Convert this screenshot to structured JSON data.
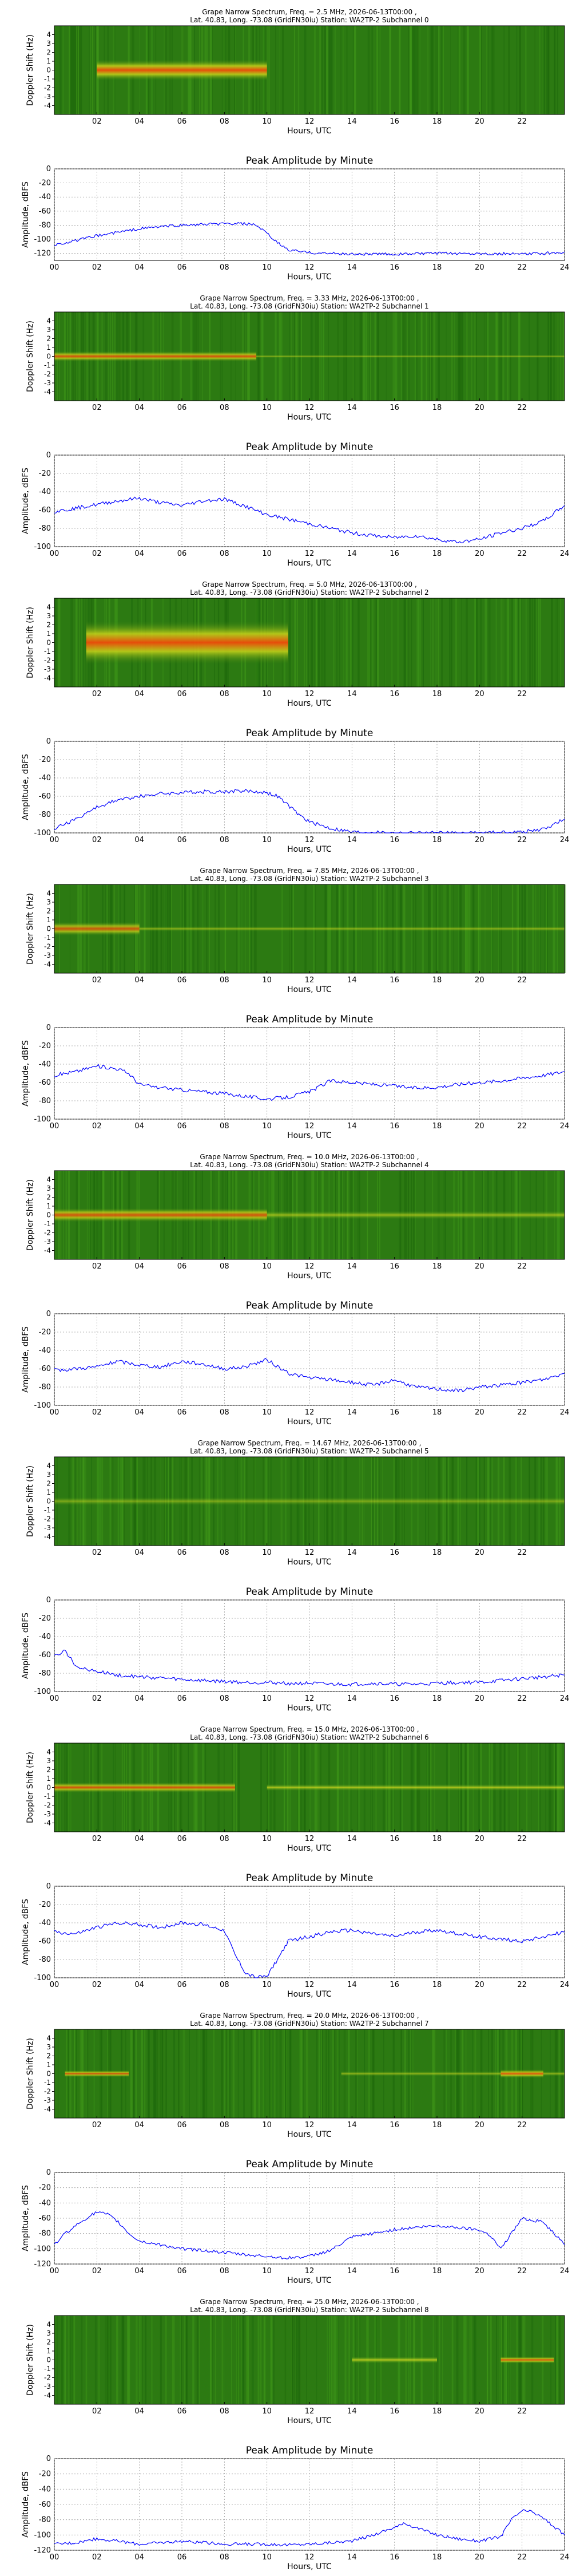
{
  "page": {
    "background": "#ffffff",
    "spectrogram_bg": "#2c7a12",
    "line_color": "#0000ff"
  },
  "common": {
    "x_ticks": [
      "00",
      "02",
      "04",
      "06",
      "08",
      "10",
      "12",
      "14",
      "16",
      "18",
      "20",
      "22",
      "24"
    ],
    "spec_x_ticks": [
      "02",
      "04",
      "06",
      "08",
      "10",
      "12",
      "14",
      "16",
      "18",
      "20",
      "22"
    ],
    "spec_y_ticks": [
      "-4",
      "-3",
      "-2",
      "-1",
      "0",
      "1",
      "2",
      "3",
      "4"
    ],
    "xlabel": "Hours, UTC",
    "spec_ylabel": "Doppler Shift (Hz)",
    "amp_title": "Peak Amplitude by Minute",
    "amp_ylabel": "Amplitude, dBFS"
  },
  "channels": [
    {
      "title_line1": "Grape Narrow Spectrum, Freq. = 2.5 MHz, 2026-06-13T00:00 ,",
      "title_line2": "Lat.  40.83, Long. -73.08 (GridFN30iu) Station: WA2TP-2 Subchannel 0"
    },
    {
      "title_line1": "Grape Narrow Spectrum, Freq. = 3.33 MHz, 2026-06-13T00:00 ,",
      "title_line2": "Lat.  40.83, Long. -73.08 (GridFN30iu) Station: WA2TP-2 Subchannel 1"
    },
    {
      "title_line1": "Grape Narrow Spectrum, Freq. = 5.0 MHz, 2026-06-13T00:00 ,",
      "title_line2": "Lat.  40.83, Long. -73.08 (GridFN30iu) Station: WA2TP-2 Subchannel 2"
    },
    {
      "title_line1": "Grape Narrow Spectrum, Freq. = 7.85 MHz, 2026-06-13T00:00 ,",
      "title_line2": "Lat.  40.83, Long. -73.08 (GridFN30iu) Station: WA2TP-2 Subchannel 3"
    },
    {
      "title_line1": "Grape Narrow Spectrum, Freq. = 10.0 MHz, 2026-06-13T00:00 ,",
      "title_line2": "Lat.  40.83, Long. -73.08 (GridFN30iu) Station: WA2TP-2 Subchannel 4"
    },
    {
      "title_line1": "Grape Narrow Spectrum, Freq. = 14.67 MHz, 2026-06-13T00:00 ,",
      "title_line2": "Lat.  40.83, Long. -73.08 (GridFN30iu) Station: WA2TP-2 Subchannel 5"
    },
    {
      "title_line1": "Grape Narrow Spectrum, Freq. = 15.0 MHz, 2026-06-13T00:00 ,",
      "title_line2": "Lat.  40.83, Long. -73.08 (GridFN30iu) Station: WA2TP-2 Subchannel 6"
    },
    {
      "title_line1": "Grape Narrow Spectrum, Freq. = 20.0 MHz, 2026-06-13T00:00 ,",
      "title_line2": "Lat.  40.83, Long. -73.08 (GridFN30iu) Station: WA2TP-2 Subchannel 7"
    },
    {
      "title_line1": "Grape Narrow Spectrum, Freq. = 25.0 MHz, 2026-06-13T00:00 ,",
      "title_line2": "Lat.  40.83, Long. -73.08 (GridFN30iu) Station: WA2TP-2 Subchannel 8"
    }
  ],
  "chart_data": [
    {
      "type": "heatmap",
      "title": "Grape Narrow Spectrum, Freq. = 2.5 MHz, 2026-06-13T00:00 ,",
      "xlabel": "Hours, UTC",
      "ylabel": "Doppler Shift (Hz)",
      "xlim": [
        0,
        24
      ],
      "ylim": [
        -5,
        5
      ],
      "bright_regions": [
        {
          "x": [
            2,
            10
          ],
          "y": [
            -1.2,
            1.2
          ],
          "intensity": 0.95
        }
      ]
    },
    {
      "type": "line",
      "title": "Peak Amplitude by Minute",
      "xlabel": "Hours, UTC",
      "ylabel": "Amplitude, dBFS",
      "xlim": [
        0,
        24
      ],
      "ylim": [
        -130,
        0
      ],
      "grid": true,
      "series": [
        {
          "x": [
            0,
            1,
            2,
            3,
            4,
            5,
            6,
            7,
            8,
            9,
            9.5,
            10,
            10.5,
            11,
            12,
            13,
            14,
            16,
            18,
            20,
            22,
            23,
            24
          ],
          "y": [
            -108,
            -102,
            -95,
            -90,
            -85,
            -82,
            -80,
            -79,
            -78,
            -78,
            -80,
            -92,
            -105,
            -115,
            -119,
            -120,
            -121,
            -121,
            -120,
            -120,
            -121,
            -120,
            -118
          ]
        }
      ]
    },
    {
      "type": "heatmap",
      "title": "Grape Narrow Spectrum, Freq. = 3.33 MHz, 2026-06-13T00:00 ,",
      "xlabel": "Hours, UTC",
      "ylabel": "Doppler Shift (Hz)",
      "xlim": [
        0,
        24
      ],
      "ylim": [
        -5,
        5
      ],
      "bright_regions": [
        {
          "x": [
            0,
            9.5
          ],
          "y": [
            -0.6,
            0.6
          ],
          "intensity": 0.85
        },
        {
          "x": [
            9.5,
            24
          ],
          "y": [
            -0.2,
            0.2
          ],
          "intensity": 0.5
        }
      ]
    },
    {
      "type": "line",
      "title": "Peak Amplitude by Minute",
      "xlabel": "Hours, UTC",
      "ylabel": "Amplitude, dBFS",
      "xlim": [
        0,
        24
      ],
      "ylim": [
        -100,
        0
      ],
      "grid": true,
      "series": [
        {
          "x": [
            0,
            1,
            2,
            3,
            4,
            5,
            6,
            7,
            8,
            9,
            10,
            11,
            12,
            13,
            14,
            15,
            16,
            17,
            18,
            19,
            20,
            21,
            22,
            23,
            24
          ],
          "y": [
            -62,
            -58,
            -54,
            -50,
            -47,
            -52,
            -55,
            -50,
            -48,
            -56,
            -65,
            -70,
            -75,
            -80,
            -85,
            -88,
            -90,
            -88,
            -92,
            -95,
            -92,
            -85,
            -80,
            -72,
            -55
          ]
        }
      ]
    },
    {
      "type": "heatmap",
      "title": "Grape Narrow Spectrum, Freq. = 5.0 MHz, 2026-06-13T00:00 ,",
      "xlabel": "Hours, UTC",
      "ylabel": "Doppler Shift (Hz)",
      "xlim": [
        0,
        24
      ],
      "ylim": [
        -5,
        5
      ],
      "bright_regions": [
        {
          "x": [
            1.5,
            11
          ],
          "y": [
            -2.5,
            2.5
          ],
          "intensity": 0.95
        }
      ]
    },
    {
      "type": "line",
      "title": "Peak Amplitude by Minute",
      "xlabel": "Hours, UTC",
      "ylabel": "Amplitude, dBFS",
      "xlim": [
        0,
        24
      ],
      "ylim": [
        -100,
        0
      ],
      "grid": true,
      "series": [
        {
          "x": [
            0,
            1,
            2,
            3,
            4,
            5,
            6,
            7,
            8,
            9,
            10,
            10.5,
            11,
            11.5,
            12,
            13,
            14,
            16,
            18,
            20,
            22,
            23,
            24
          ],
          "y": [
            -95,
            -85,
            -72,
            -64,
            -60,
            -57,
            -56,
            -55,
            -55,
            -54,
            -56,
            -60,
            -70,
            -80,
            -88,
            -95,
            -99,
            -100,
            -100,
            -100,
            -99,
            -96,
            -85
          ]
        }
      ]
    },
    {
      "type": "heatmap",
      "title": "Grape Narrow Spectrum, Freq. = 7.85 MHz, 2026-06-13T00:00 ,",
      "xlabel": "Hours, UTC",
      "ylabel": "Doppler Shift (Hz)",
      "xlim": [
        0,
        24
      ],
      "ylim": [
        -5,
        5
      ],
      "bright_regions": [
        {
          "x": [
            0,
            4
          ],
          "y": [
            -0.8,
            0.8
          ],
          "intensity": 0.8
        },
        {
          "x": [
            4,
            24
          ],
          "y": [
            -0.3,
            0.3
          ],
          "intensity": 0.55
        }
      ]
    },
    {
      "type": "line",
      "title": "Peak Amplitude by Minute",
      "xlabel": "Hours, UTC",
      "ylabel": "Amplitude, dBFS",
      "xlim": [
        0,
        24
      ],
      "ylim": [
        -100,
        0
      ],
      "grid": true,
      "series": [
        {
          "x": [
            0,
            1,
            2,
            3,
            3.5,
            4,
            5,
            6,
            7,
            8,
            9,
            10,
            11,
            12,
            13,
            14,
            15,
            16,
            17,
            18,
            19,
            20,
            21,
            22,
            23,
            24
          ],
          "y": [
            -52,
            -48,
            -42,
            -45,
            -50,
            -62,
            -66,
            -68,
            -70,
            -72,
            -75,
            -78,
            -76,
            -70,
            -58,
            -60,
            -62,
            -64,
            -66,
            -65,
            -62,
            -60,
            -58,
            -55,
            -52,
            -48
          ]
        }
      ]
    },
    {
      "type": "heatmap",
      "title": "Grape Narrow Spectrum, Freq. = 10.0 MHz, 2026-06-13T00:00 ,",
      "xlabel": "Hours, UTC",
      "ylabel": "Doppler Shift (Hz)",
      "xlim": [
        0,
        24
      ],
      "ylim": [
        -5,
        5
      ],
      "bright_regions": [
        {
          "x": [
            0,
            10
          ],
          "y": [
            -0.8,
            0.8
          ],
          "intensity": 0.85
        },
        {
          "x": [
            10,
            24
          ],
          "y": [
            -0.5,
            0.5
          ],
          "intensity": 0.6
        }
      ]
    },
    {
      "type": "line",
      "title": "Peak Amplitude by Minute",
      "xlabel": "Hours, UTC",
      "ylabel": "Amplitude, dBFS",
      "xlim": [
        0,
        24
      ],
      "ylim": [
        -100,
        0
      ],
      "grid": true,
      "series": [
        {
          "x": [
            0,
            1,
            2,
            3,
            4,
            5,
            6,
            7,
            8,
            9,
            10,
            11,
            12,
            13,
            14,
            15,
            16,
            17,
            18,
            19,
            20,
            21,
            22,
            23,
            24
          ],
          "y": [
            -62,
            -60,
            -58,
            -52,
            -56,
            -58,
            -52,
            -55,
            -60,
            -58,
            -50,
            -65,
            -70,
            -72,
            -75,
            -78,
            -72,
            -80,
            -82,
            -84,
            -80,
            -78,
            -75,
            -72,
            -65
          ]
        }
      ]
    },
    {
      "type": "heatmap",
      "title": "Grape Narrow Spectrum, Freq. = 14.67 MHz, 2026-06-13T00:00 ,",
      "xlabel": "Hours, UTC",
      "ylabel": "Doppler Shift (Hz)",
      "xlim": [
        0,
        24
      ],
      "ylim": [
        -5,
        5
      ],
      "bright_regions": [
        {
          "x": [
            0,
            24
          ],
          "y": [
            -0.5,
            0.5
          ],
          "intensity": 0.45
        }
      ]
    },
    {
      "type": "line",
      "title": "Peak Amplitude by Minute",
      "xlabel": "Hours, UTC",
      "ylabel": "Amplitude, dBFS",
      "xlim": [
        0,
        24
      ],
      "ylim": [
        -100,
        0
      ],
      "grid": true,
      "series": [
        {
          "x": [
            0,
            0.5,
            1,
            1.5,
            2,
            3,
            4,
            5,
            6,
            7,
            8,
            9,
            10,
            11,
            12,
            13,
            14,
            15,
            16,
            17,
            18,
            19,
            20,
            21,
            22,
            23,
            24
          ],
          "y": [
            -62,
            -55,
            -72,
            -75,
            -78,
            -82,
            -84,
            -85,
            -87,
            -88,
            -89,
            -90,
            -90,
            -91,
            -91,
            -92,
            -92,
            -91,
            -92,
            -92,
            -91,
            -90,
            -90,
            -88,
            -86,
            -84,
            -82
          ]
        }
      ]
    },
    {
      "type": "heatmap",
      "title": "Grape Narrow Spectrum, Freq. = 15.0 MHz, 2026-06-13T00:00 ,",
      "xlabel": "Hours, UTC",
      "ylabel": "Doppler Shift (Hz)",
      "xlim": [
        0,
        24
      ],
      "ylim": [
        -5,
        5
      ],
      "bright_regions": [
        {
          "x": [
            0,
            8.5
          ],
          "y": [
            -0.6,
            0.6
          ],
          "intensity": 0.85
        },
        {
          "x": [
            10,
            24
          ],
          "y": [
            -0.4,
            0.4
          ],
          "intensity": 0.7
        }
      ]
    },
    {
      "type": "line",
      "title": "Peak Amplitude by Minute",
      "xlabel": "Hours, UTC",
      "ylabel": "Amplitude, dBFS",
      "xlim": [
        0,
        24
      ],
      "ylim": [
        -100,
        0
      ],
      "grid": true,
      "series": [
        {
          "x": [
            0,
            1,
            2,
            3,
            4,
            5,
            6,
            7,
            8,
            8.5,
            9,
            9.5,
            10,
            10.5,
            11,
            12,
            13,
            14,
            15,
            16,
            17,
            18,
            19,
            20,
            21,
            22,
            23,
            24
          ],
          "y": [
            -50,
            -52,
            -45,
            -40,
            -42,
            -45,
            -40,
            -42,
            -48,
            -75,
            -95,
            -100,
            -98,
            -80,
            -60,
            -55,
            -50,
            -48,
            -52,
            -55,
            -50,
            -48,
            -52,
            -55,
            -58,
            -60,
            -55,
            -50
          ]
        }
      ]
    },
    {
      "type": "heatmap",
      "title": "Grape Narrow Spectrum, Freq. = 20.0 MHz, 2026-06-13T00:00 ,",
      "xlabel": "Hours, UTC",
      "ylabel": "Doppler Shift (Hz)",
      "xlim": [
        0,
        24
      ],
      "ylim": [
        -5,
        5
      ],
      "bright_regions": [
        {
          "x": [
            0.5,
            3.5
          ],
          "y": [
            -0.4,
            0.4
          ],
          "intensity": 0.85
        },
        {
          "x": [
            13.5,
            24
          ],
          "y": [
            -0.3,
            0.3
          ],
          "intensity": 0.55
        },
        {
          "x": [
            21,
            23
          ],
          "y": [
            -0.5,
            0.5
          ],
          "intensity": 0.85
        }
      ]
    },
    {
      "type": "line",
      "title": "Peak Amplitude by Minute",
      "xlabel": "Hours, UTC",
      "ylabel": "Amplitude, dBFS",
      "xlim": [
        0,
        24
      ],
      "ylim": [
        -120,
        0
      ],
      "grid": true,
      "series": [
        {
          "x": [
            0,
            0.5,
            1,
            1.5,
            2,
            2.5,
            3,
            3.5,
            4,
            5,
            6,
            7,
            8,
            9,
            10,
            11,
            12,
            13,
            14,
            15,
            16,
            17,
            18,
            19,
            20,
            20.5,
            21,
            21.5,
            22,
            23,
            24
          ],
          "y": [
            -95,
            -80,
            -70,
            -60,
            -52,
            -55,
            -65,
            -80,
            -90,
            -95,
            -100,
            -102,
            -105,
            -108,
            -110,
            -112,
            -110,
            -102,
            -85,
            -80,
            -75,
            -72,
            -70,
            -72,
            -75,
            -82,
            -100,
            -80,
            -60,
            -65,
            -95
          ]
        }
      ]
    },
    {
      "type": "heatmap",
      "title": "Grape Narrow Spectrum, Freq. = 25.0 MHz, 2026-06-13T00:00 ,",
      "xlabel": "Hours, UTC",
      "ylabel": "Doppler Shift (Hz)",
      "xlim": [
        0,
        24
      ],
      "ylim": [
        -5,
        5
      ],
      "bright_regions": [
        {
          "x": [
            14,
            18
          ],
          "y": [
            -0.4,
            0.4
          ],
          "intensity": 0.75
        },
        {
          "x": [
            21,
            23.5
          ],
          "y": [
            -0.4,
            0.4
          ],
          "intensity": 0.9
        }
      ]
    },
    {
      "type": "line",
      "title": "Peak Amplitude by Minute",
      "xlabel": "Hours, UTC",
      "ylabel": "Amplitude, dBFS",
      "xlim": [
        0,
        24
      ],
      "ylim": [
        -120,
        0
      ],
      "grid": true,
      "series": [
        {
          "x": [
            0,
            1,
            2,
            3,
            4,
            5,
            6,
            7,
            8,
            9,
            10,
            11,
            12,
            13,
            14,
            15,
            16,
            16.5,
            17,
            18,
            19,
            20,
            21,
            21.5,
            22,
            22.5,
            23,
            24
          ],
          "y": [
            -112,
            -110,
            -105,
            -108,
            -112,
            -110,
            -108,
            -110,
            -112,
            -112,
            -112,
            -113,
            -112,
            -110,
            -108,
            -100,
            -90,
            -85,
            -90,
            -100,
            -105,
            -108,
            -102,
            -80,
            -68,
            -70,
            -78,
            -100
          ]
        }
      ]
    }
  ]
}
